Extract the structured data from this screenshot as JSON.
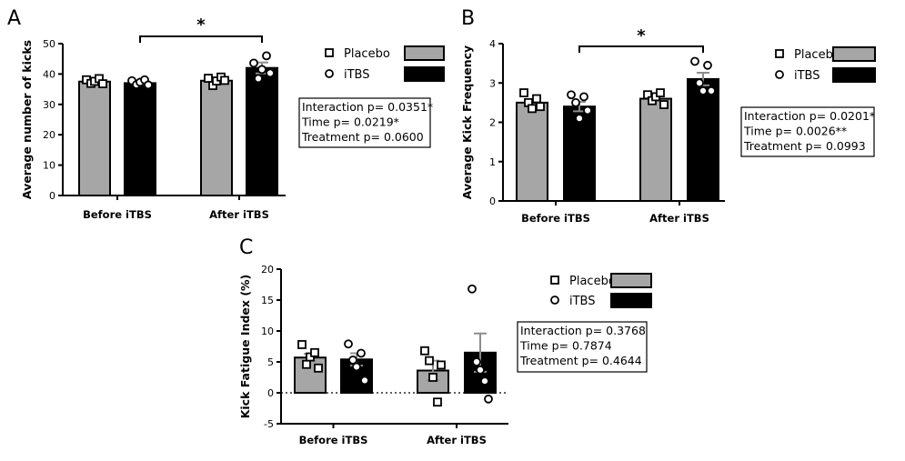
{
  "colors": {
    "placebo": "#a6a6a6",
    "itbs": "#000000",
    "axis": "#000000",
    "error_bar": "#8c8c8c"
  },
  "chart_data": [
    {
      "panel": "A",
      "type": "bar",
      "ylabel": "Average number of kicks",
      "xlabel": "",
      "ylim": [
        0,
        50
      ],
      "yticks": [
        0,
        10,
        20,
        30,
        40,
        50
      ],
      "categories": [
        "Before iTBS",
        "After iTBS"
      ],
      "series": [
        {
          "name": "Placebo",
          "marker": "square",
          "values": [
            37.5,
            37.8
          ],
          "sem": [
            0.5,
            1.0
          ],
          "points": [
            [
              38.1,
              36.9,
              37.6,
              38.5,
              36.8
            ],
            [
              38.6,
              36.2,
              37.7,
              39.0,
              37.9
            ]
          ]
        },
        {
          "name": "iTBS",
          "marker": "circle",
          "values": [
            37.0,
            42.0
          ],
          "sem": [
            0.5,
            1.8
          ],
          "points": [
            [
              37.8,
              36.5,
              37.3,
              38.1,
              36.4
            ],
            [
              43.6,
              38.5,
              41.5,
              46.0,
              40.3
            ]
          ]
        }
      ],
      "significance": {
        "label": "*",
        "from": "Before iTBS",
        "to": "After iTBS"
      },
      "stats": [
        "Interaction p= 0.0351*",
        "Time p= 0.0219*",
        "Treatment p= 0.0600"
      ]
    },
    {
      "panel": "B",
      "type": "bar",
      "ylabel": "Average Kick Frequency",
      "xlabel": "",
      "ylim": [
        0,
        4
      ],
      "yticks": [
        0,
        1,
        2,
        3,
        4
      ],
      "categories": [
        "Before iTBS",
        "After iTBS"
      ],
      "series": [
        {
          "name": "Placebo",
          "marker": "square",
          "values": [
            2.5,
            2.6
          ],
          "sem": [
            0.08,
            0.06
          ],
          "points": [
            [
              2.75,
              2.5,
              2.35,
              2.6,
              2.4
            ],
            [
              2.7,
              2.55,
              2.65,
              2.75,
              2.45
            ]
          ]
        },
        {
          "name": "iTBS",
          "marker": "circle",
          "values": [
            2.4,
            3.1
          ],
          "sem": [
            0.12,
            0.16
          ],
          "points": [
            [
              2.7,
              2.5,
              2.1,
              2.65,
              2.3
            ],
            [
              3.55,
              3.0,
              2.8,
              3.45,
              2.8
            ]
          ]
        }
      ],
      "significance": {
        "label": "*",
        "from": "Before iTBS",
        "to": "After iTBS"
      },
      "stats": [
        "Interaction p= 0.0201*",
        "Time p= 0.0026**",
        "Treatment p= 0.0993"
      ]
    },
    {
      "panel": "C",
      "type": "bar",
      "ylabel": "Kick Fatigue Index (%)",
      "xlabel": "",
      "ylim": [
        -5,
        20
      ],
      "yticks": [
        -5,
        0,
        5,
        10,
        15,
        20
      ],
      "zero_line": "dotted",
      "categories": [
        "Before iTBS",
        "After iTBS"
      ],
      "series": [
        {
          "name": "Placebo",
          "marker": "square",
          "values": [
            5.7,
            3.6
          ],
          "sem": [
            0.6,
            1.6
          ],
          "points": [
            [
              7.8,
              4.6,
              5.8,
              6.5,
              4.0
            ],
            [
              6.8,
              5.2,
              2.5,
              -1.5,
              4.5
            ]
          ]
        },
        {
          "name": "iTBS",
          "marker": "circle",
          "values": [
            5.4,
            6.5
          ],
          "sem": [
            1.0,
            3.1
          ],
          "points": [
            [
              7.9,
              5.3,
              4.2,
              6.4,
              2.0
            ],
            [
              16.8,
              5.0,
              3.7,
              1.9,
              -1.0
            ]
          ]
        }
      ],
      "significance": null,
      "stats": [
        "Interaction p= 0.3768",
        "Time p= 0.7874",
        "Treatment p= 0.4644"
      ]
    }
  ]
}
